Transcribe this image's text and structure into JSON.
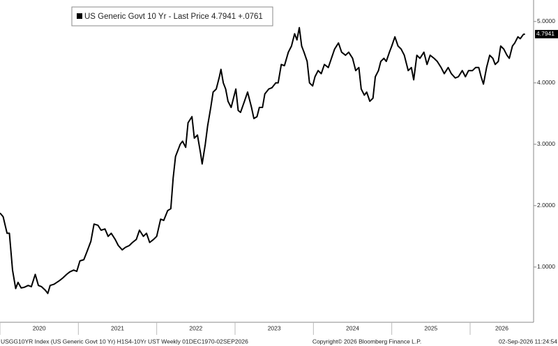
{
  "chart_data": {
    "type": "line",
    "x": [
      2020.0,
      2020.04,
      2020.09,
      2020.12,
      2020.16,
      2020.2,
      2020.23,
      2020.27,
      2020.31,
      2020.36,
      2020.4,
      2020.45,
      2020.49,
      2020.53,
      2020.58,
      2020.61,
      2020.64,
      2020.69,
      2020.76,
      2020.8,
      2020.85,
      2020.89,
      2020.94,
      2020.98,
      2021.02,
      2021.07,
      2021.11,
      2021.16,
      2021.2,
      2021.25,
      2021.29,
      2021.34,
      2021.38,
      2021.42,
      2021.47,
      2021.51,
      2021.56,
      2021.6,
      2021.65,
      2021.69,
      2021.74,
      2021.78,
      2021.83,
      2021.87,
      2021.91,
      2021.96,
      2022.0,
      2022.05,
      2022.09,
      2022.14,
      2022.18,
      2022.21,
      2022.24,
      2022.27,
      2022.3,
      2022.33,
      2022.37,
      2022.4,
      2022.45,
      2022.48,
      2022.52,
      2022.56,
      2022.58,
      2022.62,
      2022.65,
      2022.69,
      2022.72,
      2022.76,
      2022.8,
      2022.82,
      2022.85,
      2022.88,
      2022.91,
      2022.95,
      2022.98,
      2023.01,
      2023.04,
      2023.07,
      2023.12,
      2023.16,
      2023.21,
      2023.24,
      2023.28,
      2023.31,
      2023.35,
      2023.38,
      2023.43,
      2023.47,
      2023.52,
      2023.55,
      2023.59,
      2023.63,
      2023.68,
      2023.72,
      2023.76,
      2023.79,
      2023.82,
      2023.85,
      2023.88,
      2023.92,
      2023.95,
      2023.99,
      2024.02,
      2024.06,
      2024.1,
      2024.14,
      2024.19,
      2024.23,
      2024.27,
      2024.32,
      2024.36,
      2024.41,
      2024.45,
      2024.5,
      2024.54,
      2024.58,
      2024.61,
      2024.65,
      2024.68,
      2024.72,
      2024.76,
      2024.79,
      2024.83,
      2024.86,
      2024.9,
      2024.93,
      2024.97,
      2025.0,
      2025.04,
      2025.08,
      2025.12,
      2025.16,
      2025.21,
      2025.25,
      2025.28,
      2025.32,
      2025.36,
      2025.41,
      2025.45,
      2025.49,
      2025.54,
      2025.58,
      2025.63,
      2025.67,
      2025.72,
      2025.76,
      2025.81,
      2025.85,
      2025.9,
      2025.94,
      2025.98,
      2026.03,
      2026.07,
      2026.11,
      2026.14,
      2026.17,
      2026.21,
      2026.25,
      2026.29,
      2026.32,
      2026.36,
      2026.39,
      2026.43,
      2026.47,
      2026.5,
      2026.54,
      2026.57,
      2026.61,
      2026.64,
      2026.68,
      2026.7
    ],
    "series": [
      {
        "name": "US Generic Govt 10 Yr - Last Price 4.7941 +.0761",
        "color": "#000000",
        "values": [
          1.88,
          1.82,
          1.55,
          1.55,
          0.95,
          0.65,
          0.75,
          0.66,
          0.67,
          0.7,
          0.68,
          0.88,
          0.7,
          0.68,
          0.62,
          0.57,
          0.7,
          0.72,
          0.78,
          0.82,
          0.88,
          0.92,
          0.95,
          0.93,
          1.1,
          1.12,
          1.25,
          1.42,
          1.7,
          1.68,
          1.6,
          1.62,
          1.5,
          1.55,
          1.45,
          1.35,
          1.28,
          1.32,
          1.35,
          1.4,
          1.45,
          1.6,
          1.5,
          1.55,
          1.4,
          1.45,
          1.5,
          1.78,
          1.76,
          1.92,
          1.95,
          2.45,
          2.8,
          2.9,
          3.0,
          3.05,
          2.95,
          3.35,
          3.45,
          3.1,
          3.15,
          2.85,
          2.68,
          3.0,
          3.3,
          3.6,
          3.85,
          3.9,
          4.1,
          4.22,
          4.0,
          3.9,
          3.7,
          3.6,
          3.75,
          3.9,
          3.55,
          3.52,
          3.7,
          3.85,
          3.6,
          3.42,
          3.45,
          3.6,
          3.6,
          3.82,
          3.9,
          3.92,
          4.0,
          4.0,
          4.3,
          4.28,
          4.5,
          4.6,
          4.8,
          4.7,
          4.9,
          4.6,
          4.5,
          4.35,
          4.0,
          3.95,
          4.1,
          4.2,
          4.15,
          4.3,
          4.25,
          4.4,
          4.55,
          4.65,
          4.5,
          4.45,
          4.5,
          4.4,
          4.2,
          4.25,
          3.9,
          3.8,
          3.85,
          3.7,
          3.75,
          4.1,
          4.2,
          4.35,
          4.4,
          4.35,
          4.5,
          4.6,
          4.75,
          4.6,
          4.55,
          4.45,
          4.2,
          4.25,
          4.05,
          4.45,
          4.4,
          4.5,
          4.3,
          4.45,
          4.4,
          4.35,
          4.25,
          4.15,
          4.25,
          4.15,
          4.08,
          4.1,
          4.2,
          4.1,
          4.2,
          4.2,
          4.25,
          4.25,
          4.1,
          3.98,
          4.25,
          4.45,
          4.4,
          4.3,
          4.35,
          4.6,
          4.55,
          4.45,
          4.4,
          4.6,
          4.65,
          4.75,
          4.72,
          4.79,
          4.7941
        ]
      }
    ],
    "last_price_label": "4.7941",
    "xlim": [
      2020,
      2026.81
    ],
    "xticks": [
      2020,
      2021,
      2022,
      2023,
      2024,
      2025,
      2026
    ],
    "ylim": [
      0.1,
      5.35
    ],
    "yticks": [
      {
        "value": 1,
        "label": "1.0000"
      },
      {
        "value": 2,
        "label": "2.0000"
      },
      {
        "value": 3,
        "label": "3.0000"
      },
      {
        "value": 4,
        "label": "4.0000"
      },
      {
        "value": 5,
        "label": "5.0000"
      }
    ],
    "footer_left": "USGG10YR Index (US Generic Govt 10 Yr) H1S4-10Yr UST Weekly 01DEC1970-02SEP2026",
    "footer_center": "Copyright© 2026 Bloomberg Finance L.P.",
    "footer_right": "02-Sep-2026 11:24:54"
  }
}
